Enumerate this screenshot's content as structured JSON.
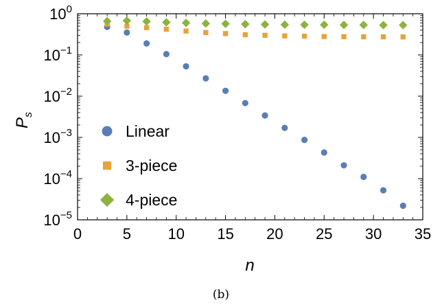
{
  "chart_data": {
    "type": "scatter",
    "title": "",
    "xlabel": "n",
    "ylabel_base": "P",
    "ylabel_sub": "s",
    "caption": "(b)",
    "xlim": [
      0,
      35
    ],
    "ylim": [
      1e-05,
      1
    ],
    "yscale": "log",
    "grid": false,
    "legend_placement": "center-left",
    "x_ticks": [
      {
        "value": 0,
        "label": "0"
      },
      {
        "value": 5,
        "label": "5"
      },
      {
        "value": 10,
        "label": "10"
      },
      {
        "value": 15,
        "label": "15"
      },
      {
        "value": 20,
        "label": "20"
      },
      {
        "value": 25,
        "label": "25"
      },
      {
        "value": 30,
        "label": "30"
      },
      {
        "value": 35,
        "label": "35"
      }
    ],
    "y_ticks": [
      {
        "value": 1,
        "base": "10",
        "exp": "0"
      },
      {
        "value": 0.1,
        "base": "10",
        "exp": "−1"
      },
      {
        "value": 0.01,
        "base": "10",
        "exp": "−2"
      },
      {
        "value": 0.001,
        "base": "10",
        "exp": "−3"
      },
      {
        "value": 0.0001,
        "base": "10",
        "exp": "−4"
      },
      {
        "value": 1e-05,
        "base": "10",
        "exp": "−5"
      }
    ],
    "x": [
      3,
      5,
      7,
      9,
      11,
      13,
      15,
      17,
      19,
      21,
      23,
      25,
      27,
      29,
      31,
      33
    ],
    "series": [
      {
        "name": "Linear",
        "marker": "circle",
        "color": "#5a7db5",
        "values": [
          0.48,
          0.35,
          0.19,
          0.105,
          0.053,
          0.027,
          0.0135,
          0.0068,
          0.0034,
          0.0017,
          0.00087,
          0.00043,
          0.00021,
          0.00011,
          5.2e-05,
          2.2e-05
        ]
      },
      {
        "name": "3-piece",
        "marker": "square",
        "color": "#e8a23a",
        "values": [
          0.56,
          0.5,
          0.46,
          0.42,
          0.38,
          0.35,
          0.33,
          0.31,
          0.3,
          0.29,
          0.285,
          0.28,
          0.278,
          0.276,
          0.275,
          0.274
        ]
      },
      {
        "name": "4-piece",
        "marker": "diamond",
        "color": "#8db23f",
        "values": [
          0.66,
          0.68,
          0.65,
          0.62,
          0.6,
          0.58,
          0.57,
          0.56,
          0.55,
          0.545,
          0.54,
          0.54,
          0.535,
          0.535,
          0.53,
          0.53
        ]
      }
    ]
  }
}
